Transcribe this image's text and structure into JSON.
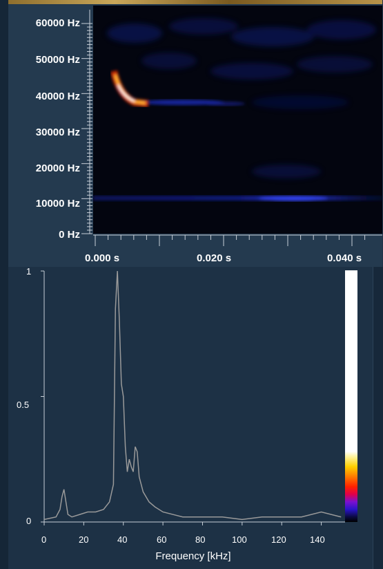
{
  "spectrogram": {
    "y_labels": [
      "60000 Hz",
      "50000 Hz",
      "40000 Hz",
      "30000 Hz",
      "20000 Hz",
      "10000 Hz",
      "0 Hz"
    ],
    "x_labels": [
      "0.000 s",
      "0.020 s",
      "0.040 s"
    ],
    "colormap": "black-blue-purple-red-yellow-white"
  },
  "fft": {
    "y_ticks": [
      "1",
      "0.5",
      "0"
    ],
    "x_ticks": [
      "0",
      "20",
      "40",
      "60",
      "80",
      "100",
      "120",
      "140"
    ],
    "x_axis_title": "Frequency [kHz]",
    "line_color": "#9a9a9a"
  },
  "chart_data": {
    "type": "line",
    "title": "",
    "xlabel": "Frequency [kHz]",
    "ylabel": "",
    "xlim": [
      0,
      152
    ],
    "ylim": [
      0,
      1
    ],
    "x": [
      0,
      6,
      8,
      9,
      10,
      11,
      12,
      14,
      18,
      22,
      26,
      30,
      33,
      35,
      36,
      37,
      38,
      39,
      40,
      41,
      42,
      43,
      44,
      45,
      46,
      47,
      48,
      50,
      53,
      56,
      60,
      70,
      80,
      90,
      100,
      110,
      120,
      130,
      140,
      150
    ],
    "series": [
      {
        "values": [
          0.01,
          0.02,
          0.05,
          0.1,
          0.13,
          0.08,
          0.03,
          0.02,
          0.03,
          0.04,
          0.04,
          0.05,
          0.08,
          0.15,
          0.85,
          1.0,
          0.8,
          0.55,
          0.5,
          0.3,
          0.2,
          0.25,
          0.22,
          0.2,
          0.3,
          0.28,
          0.18,
          0.12,
          0.08,
          0.06,
          0.04,
          0.02,
          0.02,
          0.02,
          0.01,
          0.02,
          0.02,
          0.02,
          0.04,
          0.02
        ]
      }
    ]
  }
}
